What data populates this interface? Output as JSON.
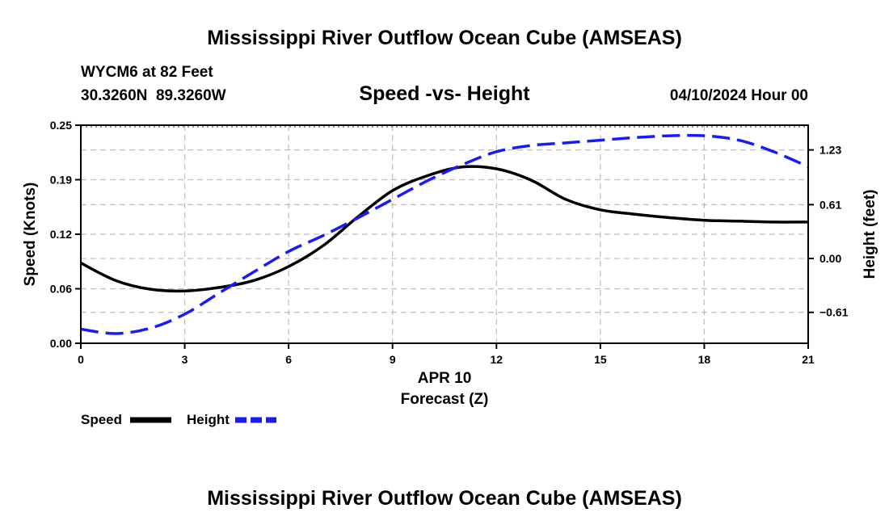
{
  "page": {
    "title": "Mississippi River Outflow Ocean Cube (AMSEAS)",
    "footer_title": "Mississippi River Outflow Ocean Cube (AMSEAS)",
    "station": "WYCM6 at 82 Feet",
    "coords": "30.3260N  89.3260W",
    "subtitle": "Speed -vs- Height",
    "datetime": "04/10/2024 Hour 00"
  },
  "chart_data": {
    "type": "line",
    "title": "Speed -vs- Height",
    "xlabel": "Forecast (Z)",
    "xlabel_date": "APR 10",
    "ylabel": "Speed (Knots)",
    "y2label": "Height (feet)",
    "xlim": [
      0,
      21
    ],
    "ylim": [
      0,
      0.25
    ],
    "y2lim": [
      -0.96,
      1.51
    ],
    "x_ticks": [
      0,
      3,
      6,
      9,
      12,
      15,
      18,
      21
    ],
    "x_tick_labels": [
      "0",
      "3",
      "6",
      "9",
      "12",
      "15",
      "18",
      "21"
    ],
    "y_ticks": [
      0.0,
      0.0625,
      0.125,
      0.1875,
      0.25
    ],
    "y_tick_labels": [
      "0.00",
      "0.06",
      "0.12",
      "0.19",
      "0.25"
    ],
    "y2_ticks": [
      -0.61,
      0.0,
      0.61,
      1.23
    ],
    "y2_tick_labels": [
      "−0.61",
      "0.00",
      "0.61",
      "1.23"
    ],
    "grid": true,
    "legend_position": "bottom-left",
    "series": [
      {
        "name": "Speed",
        "axis": "left",
        "color": "#000000",
        "style": "solid",
        "x": [
          0,
          1,
          2,
          3,
          4,
          5,
          6,
          7,
          8,
          9,
          10,
          11,
          12,
          13,
          14,
          15,
          16,
          17,
          18,
          19,
          20,
          21
        ],
        "values": [
          0.092,
          0.072,
          0.062,
          0.06,
          0.064,
          0.072,
          0.088,
          0.112,
          0.145,
          0.175,
          0.192,
          0.202,
          0.2,
          0.187,
          0.165,
          0.153,
          0.148,
          0.144,
          0.141,
          0.14,
          0.139,
          0.139
        ]
      },
      {
        "name": "Height",
        "axis": "right",
        "color": "#1a1aff",
        "style": "dashed",
        "x": [
          0,
          1,
          2,
          3,
          4,
          5,
          6,
          7,
          8,
          9,
          10,
          11,
          12,
          13,
          14,
          15,
          16,
          17,
          18,
          19,
          20,
          21
        ],
        "values": [
          -0.8,
          -0.85,
          -0.79,
          -0.63,
          -0.39,
          -0.15,
          0.08,
          0.26,
          0.46,
          0.67,
          0.88,
          1.06,
          1.21,
          1.28,
          1.31,
          1.34,
          1.37,
          1.39,
          1.39,
          1.34,
          1.21,
          1.04
        ]
      }
    ]
  }
}
